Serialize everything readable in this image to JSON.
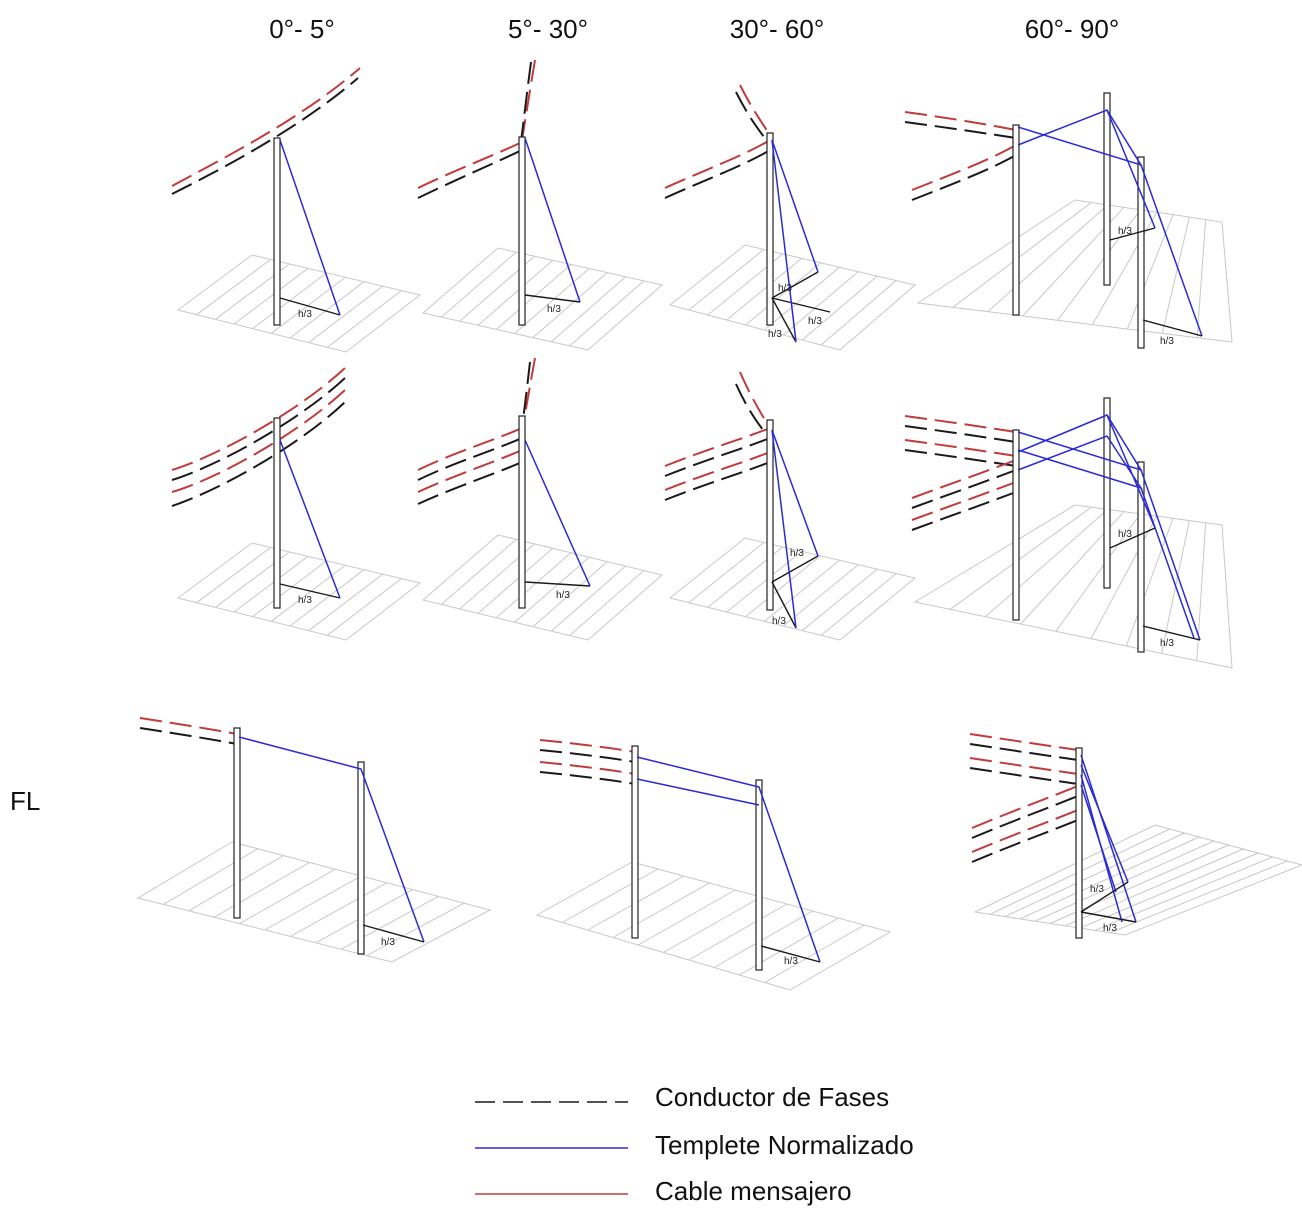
{
  "headers": [
    "0°- 5°",
    "5°- 30°",
    "30°- 60°",
    "60°- 90°"
  ],
  "row_labels": {
    "fl": "FL"
  },
  "dimension_label": "h/3",
  "colors": {
    "phase_conductor": "#1a1a1a",
    "guy_wire": "#2b2bd6",
    "messenger_cable": "#c23b3b",
    "grid": "#c8c8c8",
    "pole": "#222222"
  },
  "legend": [
    {
      "key": "phase",
      "label": "Conductor de Fases",
      "color": "#1a1a1a",
      "style": "dashed"
    },
    {
      "key": "guy",
      "label": "Templete Normalizado",
      "color": "#2b2bd6",
      "style": "solid"
    },
    {
      "key": "messenger",
      "label": "Cable mensajero",
      "color": "#c23b3b",
      "style": "solid"
    }
  ]
}
